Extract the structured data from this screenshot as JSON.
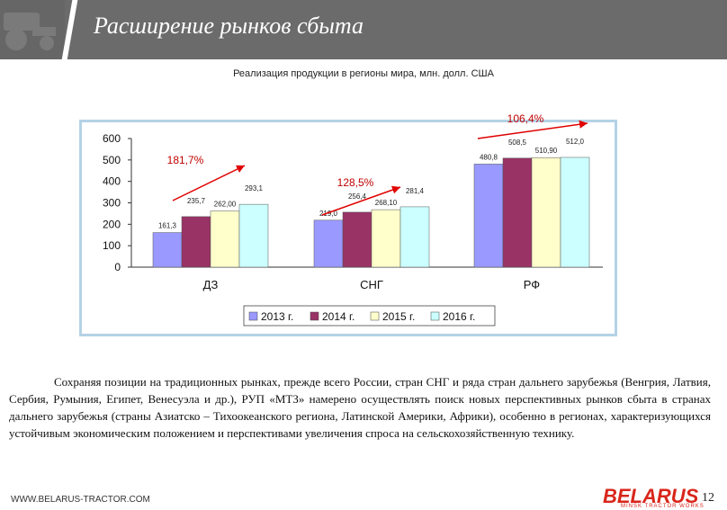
{
  "header": {
    "title": "Расширение рынков сбыта"
  },
  "chart_data": {
    "type": "bar",
    "title": "Реализация продукции в регионы мира, млн. долл. США",
    "categories": [
      "ДЗ",
      "СНГ",
      "РФ"
    ],
    "series": [
      {
        "name": "2013 г.",
        "values": [
          161.3,
          219.0,
          480.8
        ],
        "labels": [
          "161,3",
          "219,0",
          "480,8"
        ],
        "color": "#9999ff"
      },
      {
        "name": "2014 г.",
        "values": [
          235.7,
          256.4,
          508.5
        ],
        "labels": [
          "235,7",
          "256,4",
          "508,5"
        ],
        "color": "#993366"
      },
      {
        "name": "2015 г.",
        "values": [
          262.0,
          268.1,
          510.9
        ],
        "labels": [
          "262,00",
          "268,10",
          "510,90"
        ],
        "color": "#ffffcc"
      },
      {
        "name": "2016 г.",
        "values": [
          293.1,
          281.4,
          512.0
        ],
        "labels": [
          "293,1",
          "281,4",
          "512,0"
        ],
        "color": "#ccffff"
      }
    ],
    "growth_labels": [
      "181,7%",
      "128,5%",
      "106,4%"
    ],
    "ylim": [
      0,
      600
    ],
    "yticks": [
      "0",
      "100",
      "200",
      "300",
      "400",
      "500",
      "600"
    ],
    "legend_position": "bottom",
    "grid": false
  },
  "body": {
    "paragraph": "Сохраняя позиции на традиционных рынках, прежде всего России, стран СНГ и ряда стран дальнего зарубежья (Венгрия, Латвия, Сербия, Румыния, Египет, Венесуэла и др.), РУП «МТЗ» намерено осуществлять поиск новых перспективных рынков сбыта в странах дальнего зарубежья (страны Азиатско – Тихоокеанского региона, Латинской Америки, Африки), особенно в регионах, характеризующихся устойчивым экономическим положением и перспективами увеличения спроса на сельскохозяйственную технику."
  },
  "footer": {
    "url": "WWW.BELARUS-TRACTOR.COM",
    "brand": "BELARUS",
    "brand_sub": "MINSK TRACTOR WORKS",
    "page_number": "12"
  },
  "colors": {
    "header_bg": "#6b6b6b",
    "arrow": "#e00000",
    "brand": "#d9261c",
    "frame": "#b4d2e6"
  }
}
